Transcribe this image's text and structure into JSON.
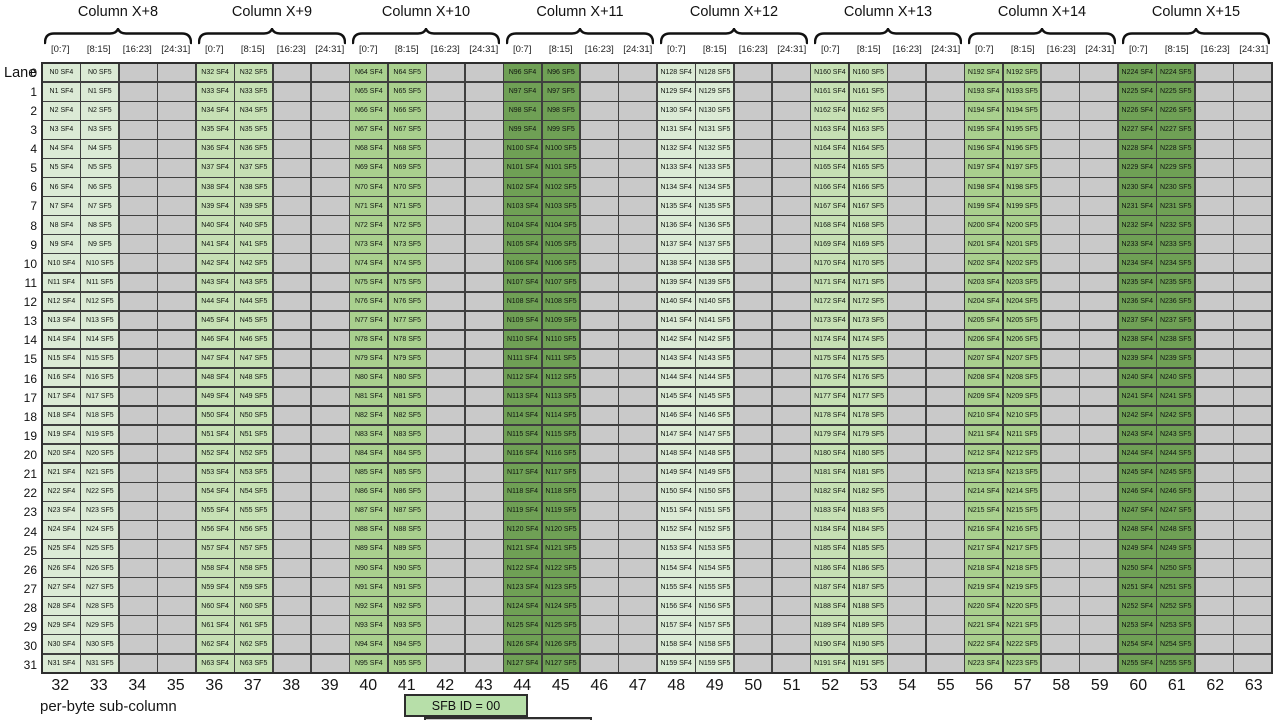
{
  "header": {
    "groups": [
      {
        "title": "Column X+8",
        "node_base": 0,
        "fill": "#DBEAD5"
      },
      {
        "title": "Column X+9",
        "node_base": 32,
        "fill": "#C6E0B4"
      },
      {
        "title": "Column X+10",
        "node_base": 64,
        "fill": "#A9D08E"
      },
      {
        "title": "Column X+11",
        "node_base": 96,
        "fill": "#6FA055"
      },
      {
        "title": "Column X+12",
        "node_base": 128,
        "fill": "#DBEAD5"
      },
      {
        "title": "Column X+13",
        "node_base": 160,
        "fill": "#C6E0B4"
      },
      {
        "title": "Column X+14",
        "node_base": 192,
        "fill": "#A9D08E"
      },
      {
        "title": "Column X+15",
        "node_base": 224,
        "fill": "#6FA055"
      }
    ],
    "sub_headers": [
      "[0:7]",
      "[8:15]",
      "[16:23]",
      "[24:31]"
    ]
  },
  "table": {
    "lane_label": "Lane",
    "lanes": [
      0,
      1,
      2,
      3,
      4,
      5,
      6,
      7,
      8,
      9,
      10,
      11,
      12,
      13,
      14,
      15,
      16,
      17,
      18,
      19,
      20,
      21,
      22,
      23,
      24,
      25,
      26,
      27,
      28,
      29,
      30,
      31
    ],
    "node_prefix": "N",
    "cell_suffixes": [
      "SF4",
      "SF5"
    ],
    "colors": {
      "empty_cell": "#C9C9C9",
      "grid_line": "#3F3F3F"
    }
  },
  "footer": {
    "byte_columns": [
      32,
      33,
      34,
      35,
      36,
      37,
      38,
      39,
      40,
      41,
      42,
      43,
      44,
      45,
      46,
      47,
      48,
      49,
      50,
      51,
      52,
      53,
      54,
      55,
      56,
      57,
      58,
      59,
      60,
      61,
      62,
      63
    ],
    "axis_label": "per-byte sub-column",
    "sfb_box": {
      "label": "SFB ID = 00",
      "fill": "#B7DFA9"
    }
  }
}
